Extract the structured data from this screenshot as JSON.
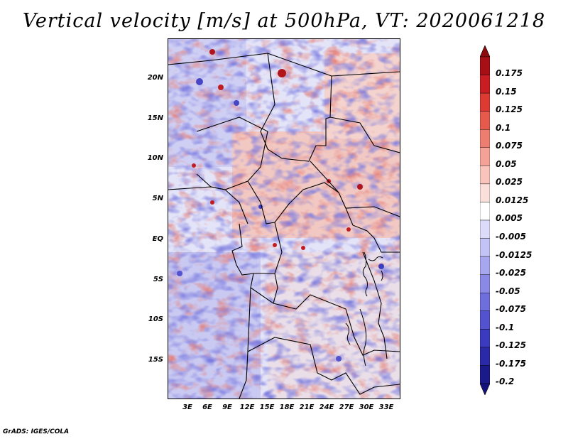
{
  "title": "Vertical velocity [m/s] at 500hPa, VT: 2020061218",
  "footer": "GrADS: IGES/COLA",
  "map": {
    "lat_range": [
      -20,
      25
    ],
    "lon_range": [
      0,
      35
    ],
    "lat_labels": [
      "20N",
      "15N",
      "10N",
      "5N",
      "EQ",
      "5S",
      "10S",
      "15S"
    ],
    "lon_labels": [
      "3E",
      "6E",
      "9E",
      "12E",
      "15E",
      "18E",
      "21E",
      "24E",
      "27E",
      "30E",
      "33E"
    ],
    "dominant_pattern": "noisy mixed ascent/descent; descent (blue) over south Atlantic and northwest, ascent (red) bands over central Africa near 5N-12N"
  },
  "colorbar": {
    "labels": [
      "0.175",
      "0.15",
      "0.125",
      "0.1",
      "0.075",
      "0.05",
      "0.025",
      "0.0125",
      "0.005",
      "-0.005",
      "-0.0125",
      "-0.025",
      "-0.05",
      "-0.075",
      "-0.1",
      "-0.125",
      "-0.175",
      "-0.2"
    ],
    "colors": [
      "#a50f15",
      "#c81d22",
      "#dc3a33",
      "#e65a4e",
      "#ee7d71",
      "#f4a297",
      "#f8c4bc",
      "#fbdfda",
      "#ffffff",
      "#dcdcfa",
      "#c3c3f5",
      "#a7a7ef",
      "#8a8ae6",
      "#6e6edc",
      "#5353cf",
      "#3b3bbf",
      "#2a2aa8",
      "#1a1a8a"
    ],
    "top_arrow_color": "#8b0a10",
    "bottom_arrow_color": "#12127a"
  }
}
